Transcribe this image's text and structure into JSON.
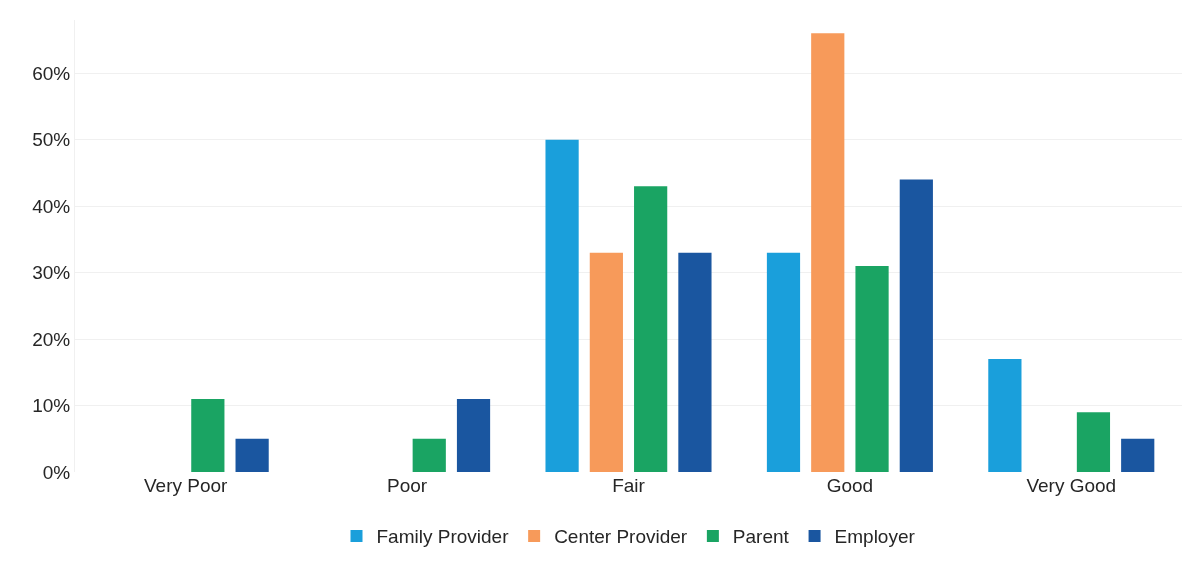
{
  "chart_data": {
    "type": "bar",
    "categories": [
      "Very Poor",
      "Poor",
      "Fair",
      "Good",
      "Very Good"
    ],
    "series": [
      {
        "name": "Family Provider",
        "color": "#1a9fdb",
        "values": [
          null,
          null,
          50,
          33,
          17
        ]
      },
      {
        "name": "Center Provider",
        "color": "#f79a5a",
        "values": [
          null,
          null,
          33,
          66,
          null
        ]
      },
      {
        "name": "Parent",
        "color": "#1aa463",
        "values": [
          11,
          5,
          43,
          31,
          9
        ]
      },
      {
        "name": "Employer",
        "color": "#1a56a0",
        "values": [
          5,
          11,
          33,
          44,
          5
        ]
      }
    ],
    "yticks": [
      {
        "value": 0,
        "label": "0%"
      },
      {
        "value": 10,
        "label": "10%"
      },
      {
        "value": 20,
        "label": "20%"
      },
      {
        "value": 30,
        "label": "30%"
      },
      {
        "value": 40,
        "label": "40%"
      },
      {
        "value": 50,
        "label": "50%"
      },
      {
        "value": 60,
        "label": "60%"
      }
    ],
    "ylim": [
      0,
      68
    ],
    "grid": "y",
    "legend": "bottom"
  }
}
